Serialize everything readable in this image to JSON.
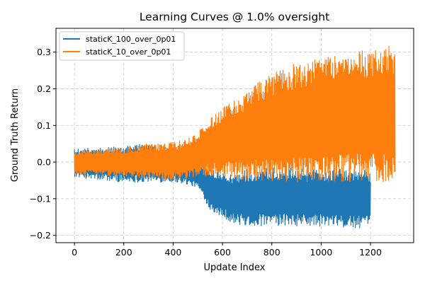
{
  "chart_data": {
    "type": "line",
    "title": "Learning Curves @ 1.0% oversight",
    "xlabel": "Update Index",
    "ylabel": "Ground Truth Return",
    "xlim": [
      -75,
      1375
    ],
    "ylim": [
      -0.22,
      0.365
    ],
    "xticks": [
      0,
      200,
      400,
      600,
      800,
      1000,
      1200
    ],
    "xtick_labels": [
      "0",
      "200",
      "400",
      "600",
      "800",
      "1000",
      "1200"
    ],
    "yticks": [
      -0.2,
      -0.1,
      0.0,
      0.1,
      0.2,
      0.3
    ],
    "ytick_labels": [
      "−0.2",
      "−0.1",
      "0.0",
      "0.1",
      "0.2",
      "0.3"
    ],
    "grid": true,
    "legend": "top-left",
    "series": [
      {
        "name": "staticK_100_over_0p01",
        "color": "#1f77b4",
        "x": [
          0,
          100,
          200,
          300,
          400,
          450,
          500,
          550,
          600,
          650,
          700,
          800,
          900,
          1000,
          1100,
          1200
        ],
        "upper": [
          0.035,
          0.04,
          0.045,
          0.05,
          0.04,
          0.02,
          0.0,
          -0.015,
          -0.025,
          -0.03,
          -0.02,
          -0.015,
          -0.015,
          -0.02,
          -0.02,
          -0.02
        ],
        "lower": [
          -0.04,
          -0.05,
          -0.055,
          -0.055,
          -0.055,
          -0.06,
          -0.07,
          -0.13,
          -0.15,
          -0.17,
          -0.175,
          -0.175,
          -0.175,
          -0.175,
          -0.18,
          -0.18
        ]
      },
      {
        "name": "staticK_10_over_0p01",
        "color": "#ff7f0e",
        "x": [
          0,
          100,
          200,
          300,
          400,
          450,
          500,
          550,
          600,
          650,
          700,
          750,
          800,
          850,
          900,
          1000,
          1100,
          1200,
          1300
        ],
        "upper": [
          0.03,
          0.035,
          0.04,
          0.05,
          0.055,
          0.06,
          0.08,
          0.12,
          0.15,
          0.17,
          0.19,
          0.22,
          0.24,
          0.26,
          0.27,
          0.29,
          0.3,
          0.31,
          0.32
        ],
        "lower": [
          -0.035,
          -0.035,
          -0.04,
          -0.045,
          -0.05,
          -0.045,
          -0.04,
          -0.035,
          -0.04,
          -0.045,
          -0.05,
          -0.05,
          -0.055,
          -0.055,
          -0.055,
          -0.055,
          -0.055,
          -0.055,
          -0.055
        ]
      }
    ]
  }
}
